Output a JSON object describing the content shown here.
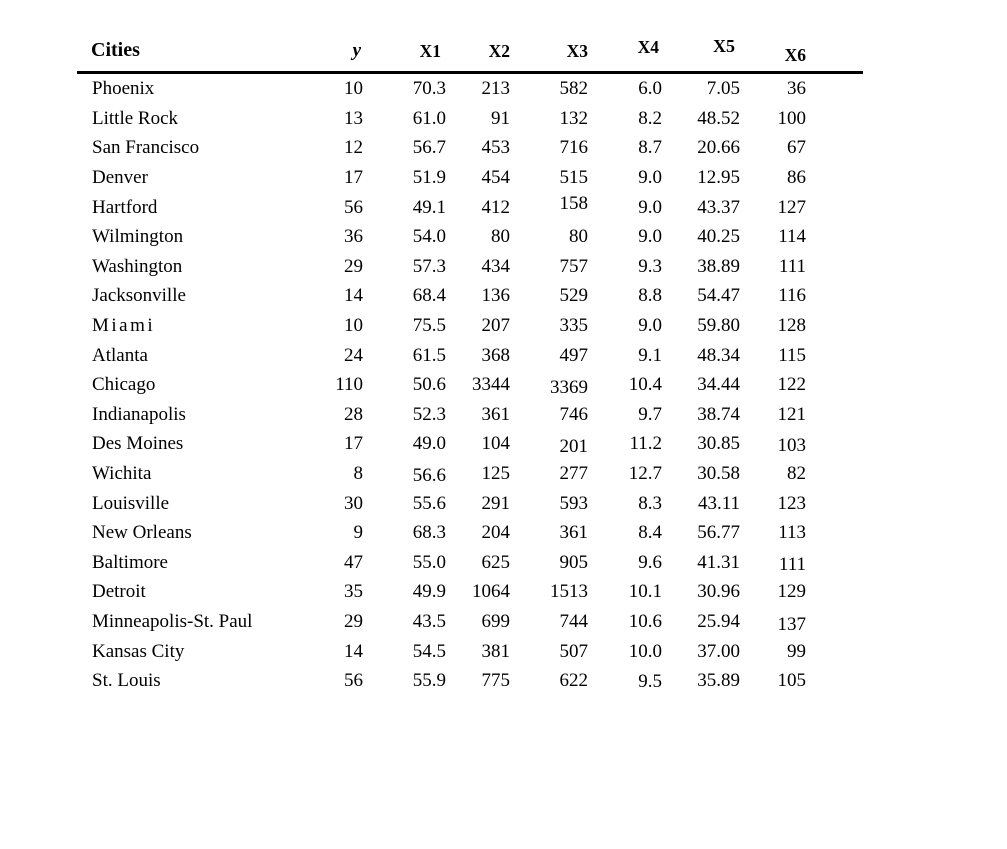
{
  "page": {
    "background_color": "#ffffff",
    "text_color": "#000000",
    "rule_color": "#000000"
  },
  "table": {
    "columns": [
      {
        "label": "Cities"
      },
      {
        "label": "y"
      },
      {
        "label": "X1"
      },
      {
        "label": "X2"
      },
      {
        "label": "X3"
      },
      {
        "label": "X4"
      },
      {
        "label": "X5"
      },
      {
        "label": "X6"
      }
    ]
  },
  "chart_data": {
    "type": "table",
    "columns": [
      "Cities",
      "y",
      "X1",
      "X2",
      "X3",
      "X4",
      "X5",
      "X6"
    ],
    "rows": [
      [
        "Phoenix",
        "10",
        "70.3",
        "213",
        "582",
        "6.0",
        "7.05",
        "36"
      ],
      [
        "Little Rock",
        "13",
        "61.0",
        "91",
        "132",
        "8.2",
        "48.52",
        "100"
      ],
      [
        "San Francisco",
        "12",
        "56.7",
        "453",
        "716",
        "8.7",
        "20.66",
        "67"
      ],
      [
        "Denver",
        "17",
        "51.9",
        "454",
        "515",
        "9.0",
        "12.95",
        "86"
      ],
      [
        "Hartford",
        "56",
        "49.1",
        "412",
        "158",
        "9.0",
        "43.37",
        "127"
      ],
      [
        "Wilmington",
        "36",
        "54.0",
        "80",
        "80",
        "9.0",
        "40.25",
        "114"
      ],
      [
        "Washington",
        "29",
        "57.3",
        "434",
        "757",
        "9.3",
        "38.89",
        "111"
      ],
      [
        "Jacksonville",
        "14",
        "68.4",
        "136",
        "529",
        "8.8",
        "54.47",
        "116"
      ],
      [
        "Miami",
        "10",
        "75.5",
        "207",
        "335",
        "9.0",
        "59.80",
        "128"
      ],
      [
        "Atlanta",
        "24",
        "61.5",
        "368",
        "497",
        "9.1",
        "48.34",
        "115"
      ],
      [
        "Chicago",
        "110",
        "50.6",
        "3344",
        "3369",
        "10.4",
        "34.44",
        "122"
      ],
      [
        "Indianapolis",
        "28",
        "52.3",
        "361",
        "746",
        "9.7",
        "38.74",
        "121"
      ],
      [
        "Des Moines",
        "17",
        "49.0",
        "104",
        "201",
        "11.2",
        "30.85",
        "103"
      ],
      [
        "Wichita",
        "8",
        "56.6",
        "125",
        "277",
        "12.7",
        "30.58",
        "82"
      ],
      [
        "Louisville",
        "30",
        "55.6",
        "291",
        "593",
        "8.3",
        "43.11",
        "123"
      ],
      [
        "New Orleans",
        "9",
        "68.3",
        "204",
        "361",
        "8.4",
        "56.77",
        "113"
      ],
      [
        "Baltimore",
        "47",
        "55.0",
        "625",
        "905",
        "9.6",
        "41.31",
        "111"
      ],
      [
        "Detroit",
        "35",
        "49.9",
        "1064",
        "1513",
        "10.1",
        "30.96",
        "129"
      ],
      [
        "Minneapolis-St. Paul",
        "29",
        "43.5",
        "699",
        "744",
        "10.6",
        "25.94",
        "137"
      ],
      [
        "Kansas City",
        "14",
        "54.5",
        "381",
        "507",
        "10.0",
        "37.00",
        "99"
      ],
      [
        "St. Louis",
        "56",
        "55.9",
        "775",
        "622",
        "9.5",
        "35.89",
        "105"
      ]
    ]
  }
}
